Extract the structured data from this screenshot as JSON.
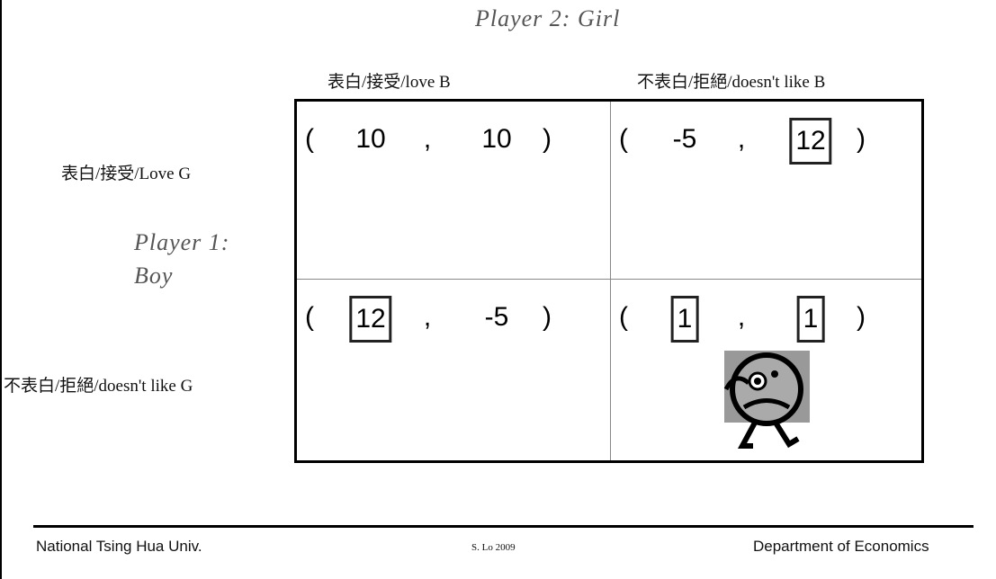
{
  "player2": {
    "label": "Player 2: Girl"
  },
  "player1": {
    "label_line1": "Player 1:",
    "label_line2": "Boy"
  },
  "columns": [
    "表白/接受/love B",
    "不表白/拒絕/doesn't like B"
  ],
  "rows": [
    "表白/接受/Love G",
    "不表白/拒絕/doesn't like G"
  ],
  "payoff_format": {
    "open": "(",
    "separator": ",",
    "close": ")"
  },
  "cells": [
    [
      [
        {
          "value": 10,
          "boxed": false
        },
        {
          "value": 10,
          "boxed": false
        }
      ],
      [
        {
          "value": -5,
          "boxed": false
        },
        {
          "value": 12,
          "boxed": true
        }
      ]
    ],
    [
      [
        {
          "value": 12,
          "boxed": true
        },
        {
          "value": -5,
          "boxed": false
        }
      ],
      [
        {
          "value": 1,
          "boxed": true
        },
        {
          "value": 1,
          "boxed": true
        }
      ]
    ]
  ],
  "footer": {
    "left": "National Tsing Hua Univ.",
    "center": "S. Lo 2009",
    "right": "Department of Economics"
  }
}
